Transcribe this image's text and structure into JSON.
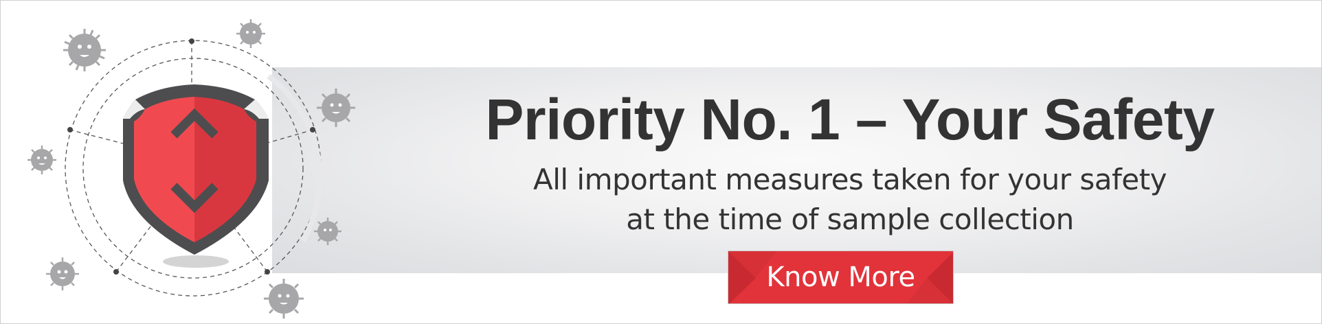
{
  "banner": {
    "title": "Priority No. 1 – Your Safety",
    "subtitle_line1": "All important measures taken for your safety",
    "subtitle_line2": "at the time of sample collection",
    "cta_label": "Know More"
  },
  "icons": {
    "shield": "shield-icon",
    "chevron_up": "chevron-up-icon",
    "chevron_down": "chevron-down-icon",
    "virus": "virus-icon"
  },
  "colors": {
    "accent_red": "#e2333a",
    "shield_red": "#f04a50",
    "shield_dark_red": "#d93740",
    "shield_border": "#4d4d4f",
    "text": "#333333",
    "virus_gray": "#a7a7a9",
    "band_gray": "#e3e4e6"
  }
}
